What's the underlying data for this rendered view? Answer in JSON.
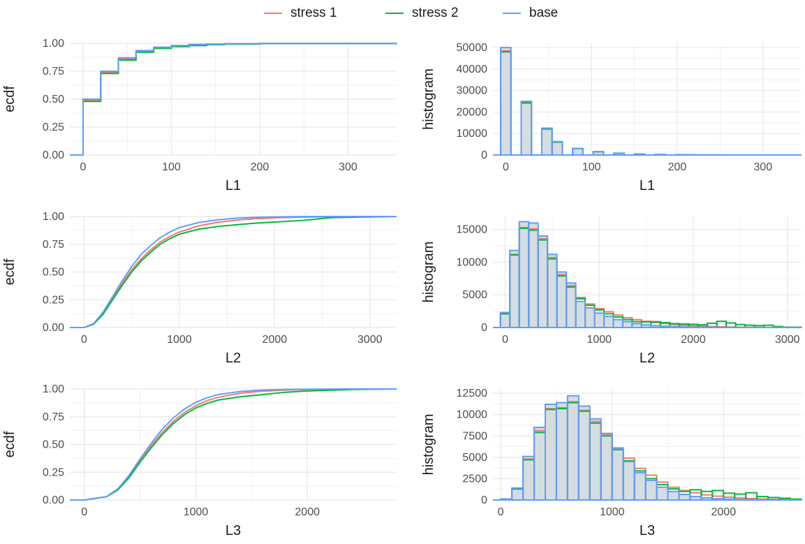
{
  "legend": {
    "items": [
      {
        "label": "stress 1",
        "color": "#F8766D"
      },
      {
        "label": "stress 2",
        "color": "#00BA38"
      },
      {
        "label": "base",
        "color": "#619CFF"
      }
    ]
  },
  "colors": {
    "fill": "#d6dde0",
    "grid": "#ebebeb"
  },
  "chart_data": [
    {
      "type": "line",
      "variable": "L1",
      "xlabel": "L1",
      "ylabel": "ecdf",
      "step": true,
      "xlim": [
        -15,
        355
      ],
      "ylim": [
        0,
        1
      ],
      "xticks": [
        0,
        100,
        200,
        300
      ],
      "xtick_labels": [
        "0",
        "100",
        "200",
        "300"
      ],
      "yticks": [
        0,
        0.25,
        0.5,
        0.75,
        1
      ],
      "ytick_labels": [
        "0.00",
        "0.25",
        "0.50",
        "0.75",
        "1.00"
      ],
      "series": [
        {
          "name": "stress 1",
          "x": [
            -15,
            0,
            20,
            40,
            60,
            80,
            100,
            120,
            140,
            160,
            200,
            355
          ],
          "y": [
            0,
            0.49,
            0.74,
            0.86,
            0.93,
            0.96,
            0.975,
            0.985,
            0.99,
            0.995,
            0.999,
            1
          ]
        },
        {
          "name": "stress 2",
          "x": [
            -15,
            0,
            20,
            40,
            60,
            80,
            100,
            120,
            140,
            160,
            200,
            355
          ],
          "y": [
            0,
            0.48,
            0.73,
            0.85,
            0.92,
            0.955,
            0.97,
            0.98,
            0.988,
            0.993,
            0.998,
            1
          ]
        },
        {
          "name": "base",
          "x": [
            -15,
            0,
            20,
            40,
            60,
            80,
            100,
            120,
            140,
            160,
            200,
            355
          ],
          "y": [
            0,
            0.5,
            0.75,
            0.87,
            0.935,
            0.965,
            0.98,
            0.99,
            0.993,
            0.996,
            0.999,
            1
          ]
        }
      ]
    },
    {
      "type": "bar",
      "variable": "L1",
      "xlabel": "L1",
      "ylabel": "histogram",
      "xlim": [
        -15,
        345
      ],
      "ylim": [
        0,
        52000
      ],
      "xticks": [
        0,
        100,
        200,
        300
      ],
      "xtick_labels": [
        "0",
        "100",
        "200",
        "300"
      ],
      "yticks": [
        0,
        10000,
        20000,
        30000,
        40000,
        50000
      ],
      "ytick_labels": [
        "0",
        "10000",
        "20000",
        "30000",
        "40000",
        "50000"
      ],
      "bin_start": -6,
      "bin_width": 12,
      "bins": 29,
      "series": [
        {
          "name": "stress 1",
          "values": [
            48500,
            0,
            24500,
            0,
            12300,
            6100,
            0,
            3000,
            0,
            1500,
            0,
            800,
            0,
            400,
            0,
            200,
            0,
            100,
            60,
            40,
            30,
            20,
            10,
            10,
            10,
            10,
            10,
            10,
            10
          ]
        },
        {
          "name": "stress 2",
          "values": [
            48000,
            0,
            24200,
            0,
            12100,
            6000,
            0,
            3000,
            0,
            1600,
            0,
            850,
            0,
            450,
            0,
            250,
            0,
            150,
            80,
            60,
            40,
            30,
            20,
            20,
            15,
            10,
            10,
            10,
            10
          ]
        },
        {
          "name": "base",
          "values": [
            50000,
            0,
            25000,
            0,
            12500,
            6250,
            0,
            3100,
            0,
            1550,
            0,
            780,
            0,
            390,
            0,
            190,
            0,
            100,
            50,
            30,
            20,
            10,
            10,
            5,
            5,
            5,
            5,
            5,
            5
          ]
        }
      ]
    },
    {
      "type": "line",
      "variable": "L2",
      "xlabel": "L2",
      "ylabel": "ecdf",
      "xlim": [
        -150,
        3280
      ],
      "ylim": [
        0,
        1
      ],
      "xticks": [
        0,
        1000,
        2000,
        3000
      ],
      "xtick_labels": [
        "0",
        "1000",
        "2000",
        "3000"
      ],
      "yticks": [
        0,
        0.25,
        0.5,
        0.75,
        1
      ],
      "ytick_labels": [
        "0.00",
        "0.25",
        "0.50",
        "0.75",
        "1.00"
      ],
      "series": [
        {
          "name": "stress 1",
          "x": [
            -150,
            0,
            100,
            200,
            300,
            400,
            500,
            600,
            700,
            800,
            900,
            1000,
            1200,
            1400,
            1600,
            1800,
            2000,
            2300,
            2600,
            3280
          ],
          "y": [
            0,
            0,
            0.03,
            0.13,
            0.26,
            0.4,
            0.52,
            0.62,
            0.7,
            0.77,
            0.82,
            0.86,
            0.915,
            0.948,
            0.967,
            0.98,
            0.988,
            0.994,
            0.998,
            1
          ]
        },
        {
          "name": "stress 2",
          "x": [
            -150,
            0,
            100,
            200,
            300,
            400,
            500,
            600,
            700,
            800,
            900,
            1000,
            1200,
            1400,
            1600,
            1800,
            2000,
            2300,
            2600,
            3280
          ],
          "y": [
            0,
            0,
            0.03,
            0.12,
            0.25,
            0.38,
            0.5,
            0.6,
            0.68,
            0.75,
            0.8,
            0.84,
            0.885,
            0.91,
            0.925,
            0.94,
            0.95,
            0.965,
            0.99,
            1
          ]
        },
        {
          "name": "base",
          "x": [
            -150,
            0,
            100,
            200,
            300,
            400,
            500,
            600,
            700,
            800,
            900,
            1000,
            1200,
            1400,
            1600,
            1800,
            2000,
            2300,
            2600,
            3280
          ],
          "y": [
            0,
            0,
            0.035,
            0.14,
            0.28,
            0.42,
            0.55,
            0.66,
            0.74,
            0.81,
            0.86,
            0.9,
            0.945,
            0.97,
            0.985,
            0.992,
            0.996,
            0.999,
            1,
            1
          ]
        }
      ]
    },
    {
      "type": "bar",
      "variable": "L2",
      "xlabel": "L2",
      "ylabel": "histogram",
      "xlim": [
        -130,
        3150
      ],
      "ylim": [
        0,
        17000
      ],
      "xticks": [
        0,
        1000,
        2000,
        3000
      ],
      "xtick_labels": [
        "0",
        "1000",
        "2000",
        "3000"
      ],
      "yticks": [
        0,
        5000,
        10000,
        15000
      ],
      "ytick_labels": [
        "0",
        "5000",
        "10000",
        "15000"
      ],
      "bin_start": -50,
      "bin_width": 100,
      "bins": 32,
      "series": [
        {
          "name": "stress 1",
          "values": [
            2200,
            11200,
            15300,
            15100,
            13600,
            10700,
            8100,
            6400,
            4600,
            3600,
            2900,
            2400,
            1900,
            1500,
            1200,
            950,
            750,
            600,
            450,
            350,
            260,
            200,
            150,
            110,
            80,
            60,
            40,
            30,
            20,
            20,
            10,
            10
          ]
        },
        {
          "name": "stress 2",
          "values": [
            2100,
            11100,
            15200,
            14900,
            13400,
            10500,
            7900,
            6200,
            4400,
            3400,
            2700,
            2100,
            1600,
            1200,
            900,
            850,
            900,
            750,
            600,
            550,
            500,
            400,
            650,
            950,
            700,
            450,
            350,
            300,
            350,
            150,
            60,
            40
          ]
        },
        {
          "name": "base",
          "values": [
            2300,
            11800,
            16200,
            16000,
            14000,
            11200,
            8500,
            6800,
            4000,
            3000,
            2200,
            1700,
            1200,
            900,
            600,
            400,
            300,
            200,
            150,
            100,
            60,
            40,
            30,
            20,
            10,
            10,
            5,
            5,
            5,
            5,
            5,
            5
          ]
        }
      ]
    },
    {
      "type": "line",
      "variable": "L3",
      "xlabel": "L3",
      "ylabel": "ecdf",
      "xlim": [
        -130,
        2800
      ],
      "ylim": [
        0,
        1
      ],
      "xticks": [
        0,
        1000,
        2000
      ],
      "xtick_labels": [
        "0",
        "1000",
        "2000"
      ],
      "yticks": [
        0,
        0.25,
        0.5,
        0.75,
        1
      ],
      "ytick_labels": [
        "0.00",
        "0.25",
        "0.50",
        "0.75",
        "1.00"
      ],
      "series": [
        {
          "name": "stress 1",
          "x": [
            -130,
            0,
            200,
            300,
            400,
            500,
            600,
            700,
            800,
            900,
            1000,
            1100,
            1200,
            1400,
            1600,
            1800,
            2000,
            2400,
            2800
          ],
          "y": [
            0,
            0,
            0.03,
            0.1,
            0.21,
            0.35,
            0.49,
            0.61,
            0.71,
            0.79,
            0.85,
            0.895,
            0.925,
            0.962,
            0.98,
            0.99,
            0.995,
            0.999,
            1
          ]
        },
        {
          "name": "stress 2",
          "x": [
            -130,
            0,
            200,
            300,
            400,
            500,
            600,
            700,
            800,
            900,
            1000,
            1100,
            1200,
            1400,
            1600,
            1800,
            2000,
            2400,
            2800
          ],
          "y": [
            0,
            0,
            0.03,
            0.09,
            0.2,
            0.34,
            0.47,
            0.59,
            0.69,
            0.77,
            0.83,
            0.87,
            0.9,
            0.93,
            0.95,
            0.97,
            0.982,
            0.995,
            1
          ]
        },
        {
          "name": "base",
          "x": [
            -130,
            0,
            200,
            300,
            400,
            500,
            600,
            700,
            800,
            900,
            1000,
            1100,
            1200,
            1400,
            1600,
            1800,
            2000,
            2400,
            2800
          ],
          "y": [
            0,
            0,
            0.03,
            0.1,
            0.22,
            0.37,
            0.51,
            0.64,
            0.74,
            0.82,
            0.88,
            0.92,
            0.95,
            0.978,
            0.99,
            0.996,
            0.998,
            1,
            1
          ]
        }
      ]
    },
    {
      "type": "bar",
      "variable": "L3",
      "xlabel": "L3",
      "ylabel": "histogram",
      "xlim": [
        -70,
        2700
      ],
      "ylim": [
        0,
        13000
      ],
      "xticks": [
        0,
        1000,
        2000
      ],
      "xtick_labels": [
        "0",
        "1000",
        "2000"
      ],
      "yticks": [
        0,
        2500,
        5000,
        7500,
        10000,
        12500
      ],
      "ytick_labels": [
        "0",
        "2500",
        "5000",
        "7500",
        "10000",
        "12500"
      ],
      "bin_start": 0,
      "bin_width": 100,
      "bins": 27,
      "series": [
        {
          "name": "stress 1",
          "values": [
            100,
            1300,
            4800,
            8100,
            10700,
            10800,
            11500,
            10500,
            9200,
            7700,
            6100,
            4900,
            3700,
            2900,
            2100,
            1500,
            1100,
            850,
            600,
            450,
            330,
            240,
            170,
            120,
            80,
            50,
            30
          ]
        },
        {
          "name": "stress 2",
          "values": [
            100,
            1300,
            4700,
            7900,
            10600,
            10700,
            11400,
            10400,
            9000,
            7500,
            5900,
            4600,
            3400,
            2500,
            1800,
            1300,
            1000,
            1200,
            1000,
            1100,
            800,
            700,
            850,
            400,
            300,
            200,
            100
          ]
        },
        {
          "name": "base",
          "values": [
            100,
            1400,
            5100,
            8500,
            11200,
            11400,
            12200,
            11000,
            9500,
            7800,
            6000,
            4500,
            3200,
            2300,
            1500,
            1000,
            650,
            400,
            250,
            150,
            100,
            60,
            40,
            20,
            10,
            10,
            5
          ]
        }
      ]
    }
  ]
}
